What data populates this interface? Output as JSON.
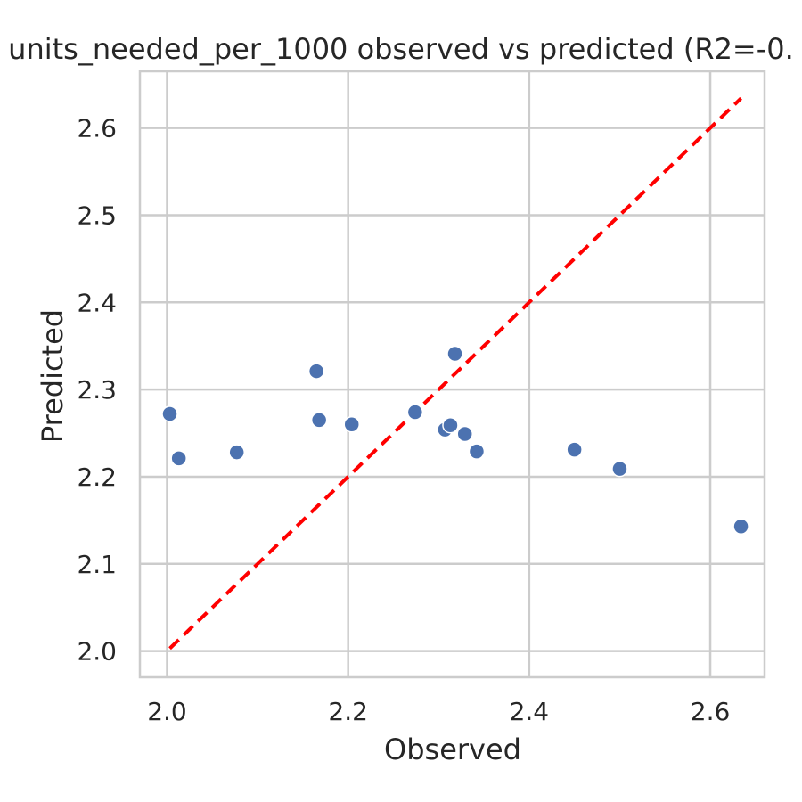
{
  "chart_data": {
    "type": "scatter",
    "title": "units_needed_per_1000 observed vs predicted (R2=-0.",
    "xlabel": "Observed",
    "ylabel": "Predicted",
    "xlim": [
      1.97,
      2.66
    ],
    "ylim": [
      1.97,
      2.665
    ],
    "xticks": [
      "2.0",
      "2.2",
      "2.4",
      "2.6"
    ],
    "yticks": [
      "2.0",
      "2.1",
      "2.2",
      "2.3",
      "2.4",
      "2.5",
      "2.6"
    ],
    "grid": true,
    "point_color": "#4c72b0",
    "points": [
      {
        "x": 2.003,
        "y": 2.272
      },
      {
        "x": 2.013,
        "y": 2.221
      },
      {
        "x": 2.077,
        "y": 2.228
      },
      {
        "x": 2.165,
        "y": 2.321
      },
      {
        "x": 2.168,
        "y": 2.265
      },
      {
        "x": 2.204,
        "y": 2.26
      },
      {
        "x": 2.274,
        "y": 2.274
      },
      {
        "x": 2.307,
        "y": 2.254
      },
      {
        "x": 2.313,
        "y": 2.259
      },
      {
        "x": 2.318,
        "y": 2.341
      },
      {
        "x": 2.329,
        "y": 2.249
      },
      {
        "x": 2.342,
        "y": 2.229
      },
      {
        "x": 2.45,
        "y": 2.231
      },
      {
        "x": 2.5,
        "y": 2.209
      },
      {
        "x": 2.634,
        "y": 2.143
      }
    ],
    "reference_line": {
      "style": "dashed",
      "color": "#ff0000",
      "from": [
        2.003,
        2.003
      ],
      "to": [
        2.634,
        2.634
      ]
    }
  }
}
